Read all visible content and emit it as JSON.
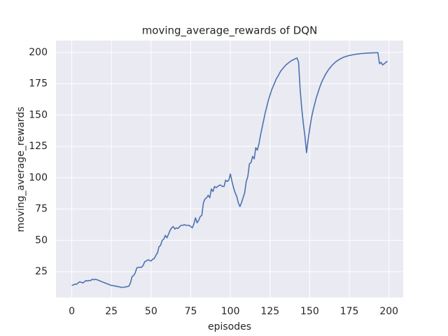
{
  "chart_data": {
    "type": "line",
    "title": "moving_average_rewards of DQN",
    "x_label": "episodes",
    "y_label": "moving_average_rewards",
    "x": [
      0,
      1,
      2,
      3,
      4,
      5,
      6,
      7,
      8,
      9,
      10,
      11,
      12,
      13,
      14,
      15,
      16,
      17,
      18,
      19,
      20,
      21,
      22,
      23,
      24,
      25,
      26,
      27,
      28,
      29,
      30,
      31,
      32,
      33,
      34,
      35,
      36,
      37,
      38,
      39,
      40,
      41,
      42,
      43,
      44,
      45,
      46,
      47,
      48,
      49,
      50,
      51,
      52,
      53,
      54,
      55,
      56,
      57,
      58,
      59,
      60,
      61,
      62,
      63,
      64,
      65,
      66,
      67,
      68,
      69,
      70,
      71,
      72,
      73,
      74,
      75,
      76,
      77,
      78,
      79,
      80,
      81,
      82,
      83,
      84,
      85,
      86,
      87,
      88,
      89,
      90,
      91,
      92,
      93,
      94,
      95,
      96,
      97,
      98,
      99,
      100,
      101,
      102,
      103,
      104,
      105,
      106,
      107,
      108,
      109,
      110,
      111,
      112,
      113,
      114,
      115,
      116,
      117,
      118,
      119,
      120,
      121,
      122,
      123,
      124,
      125,
      126,
      127,
      128,
      129,
      130,
      131,
      132,
      133,
      134,
      135,
      136,
      137,
      138,
      139,
      140,
      141,
      142,
      143,
      144,
      145,
      146,
      147,
      148,
      149,
      150,
      151,
      152,
      153,
      154,
      155,
      156,
      157,
      158,
      159,
      160,
      161,
      162,
      163,
      164,
      165,
      166,
      167,
      168,
      169,
      170,
      171,
      172,
      173,
      174,
      175,
      176,
      177,
      178,
      179,
      180,
      181,
      182,
      183,
      184,
      185,
      186,
      187,
      188,
      189,
      190,
      191,
      192,
      193,
      194,
      195,
      196,
      197,
      198,
      199
    ],
    "series": [
      {
        "color": "#4c72b0",
        "values": [
          14,
          14.5,
          15,
          15,
          16,
          17,
          16.5,
          16,
          17,
          18,
          17.5,
          18,
          18,
          19,
          18.5,
          19,
          18.5,
          18,
          17.5,
          17,
          16.5,
          16,
          15.5,
          15,
          14.5,
          14,
          14,
          13.5,
          13.5,
          13,
          13,
          12.5,
          12.5,
          12.5,
          13,
          13,
          13.5,
          16,
          21,
          22,
          24,
          28,
          28.5,
          28.5,
          28.5,
          30,
          33,
          33.5,
          34.5,
          34,
          33.5,
          35,
          35.5,
          38,
          40,
          45,
          46,
          50,
          51,
          54,
          52,
          55,
          58,
          60,
          61,
          59,
          60,
          59.5,
          61,
          62,
          62,
          62.5,
          62,
          62,
          62,
          61,
          60,
          63,
          68,
          64,
          66,
          69,
          70,
          80,
          83,
          84,
          86,
          84,
          91,
          89,
          93,
          92,
          93,
          94,
          94,
          93,
          93,
          98,
          97,
          98,
          103,
          97,
          92,
          88,
          85,
          80,
          77,
          80,
          84,
          88,
          97,
          101,
          111,
          112,
          117,
          115,
          124,
          122,
          127,
          134,
          140,
          146,
          152,
          157,
          162,
          166,
          170,
          173,
          176,
          179,
          181,
          183.5,
          185.5,
          187,
          188.5,
          190,
          191,
          192,
          193,
          193.7,
          194.3,
          195,
          195.5,
          192,
          170,
          155,
          143,
          133,
          120,
          130,
          139,
          147,
          153,
          158,
          163,
          167,
          171,
          174.5,
          177.5,
          180,
          182.5,
          184.5,
          186.5,
          188,
          189.5,
          190.8,
          192,
          193,
          193.8,
          194.6,
          195.3,
          195.9,
          196.4,
          196.8,
          197.2,
          197.5,
          197.8,
          198,
          198.3,
          198.5,
          198.7,
          198.8,
          199,
          199.1,
          199.2,
          199.3,
          199.4,
          199.5,
          199.5,
          199.6,
          199.6,
          199.7,
          199.7,
          199.8,
          191,
          192,
          190,
          191,
          192,
          193
        ]
      }
    ],
    "xlim": [
      -9.95,
      208.95
    ],
    "ylim": [
      4.4,
      209.4
    ],
    "xticks": [
      0,
      25,
      50,
      75,
      100,
      125,
      150,
      175,
      200
    ],
    "yticks": [
      25,
      50,
      75,
      100,
      125,
      150,
      175,
      200
    ],
    "grid": true,
    "background": "#eaeaf2"
  }
}
